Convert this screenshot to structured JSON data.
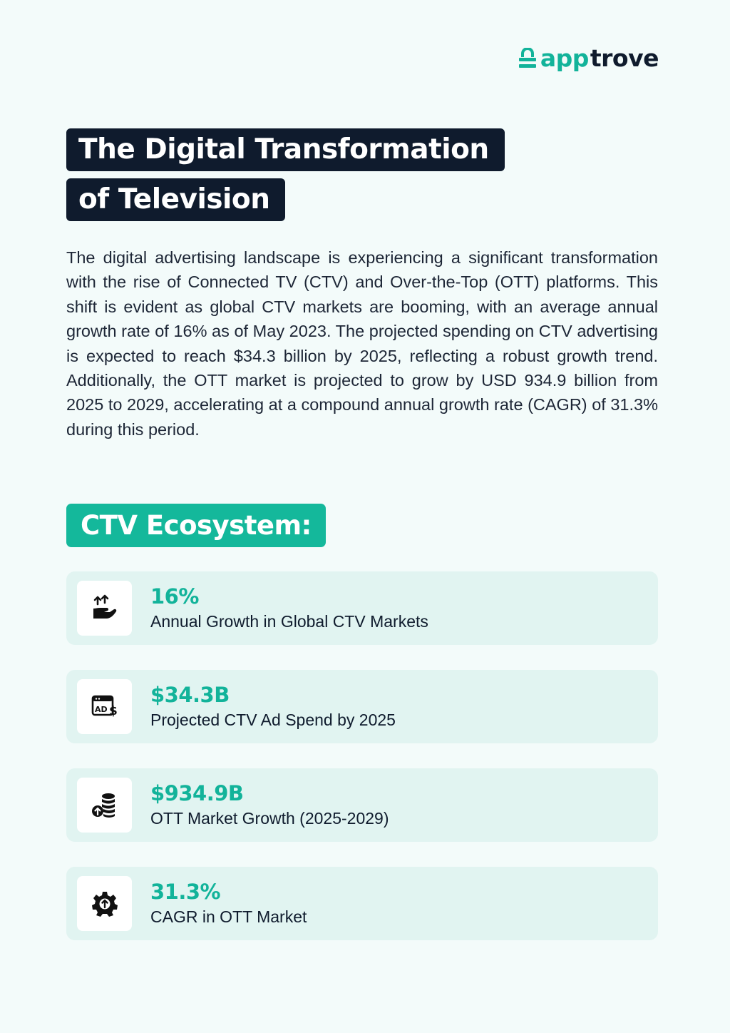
{
  "brand": {
    "part1": "app",
    "part2": "trove",
    "logo_icon": "apptrove-bag-icon",
    "accent": "#12b39a",
    "dark": "#0f1b2d"
  },
  "title": {
    "line1": "The Digital Transformation",
    "line2": "of Television"
  },
  "intro": "The digital advertising landscape is experiencing a significant transformation with the rise of Connected TV (CTV) and Over-the-Top (OTT) platforms. This shift is evident as global CTV markets are booming, with an average annual growth rate of 16% as of May 2023. The projected spending on CTV advertising is expected to reach $34.3 billion by 2025, reflecting a robust growth trend. Additionally, the OTT market is projected to grow by USD 934.9 billion from 2025 to 2029, accelerating at a compound annual growth rate (CAGR) of 31.3% during this period.",
  "section": {
    "heading": "CTV Ecosystem:",
    "color": "#14b89b"
  },
  "stats": [
    {
      "icon": "hand-growth-arrows-icon",
      "value": "16%",
      "label": "Annual Growth in Global CTV Markets"
    },
    {
      "icon": "ad-dollar-icon",
      "value": "$34.3B",
      "label": "Projected CTV Ad Spend by 2025"
    },
    {
      "icon": "coin-stack-up-icon",
      "value": "$934.9B",
      "label": "OTT Market Growth (2025-2029)"
    },
    {
      "icon": "gear-up-arrow-icon",
      "value": "31.3%",
      "label": "CAGR in OTT Market"
    }
  ]
}
